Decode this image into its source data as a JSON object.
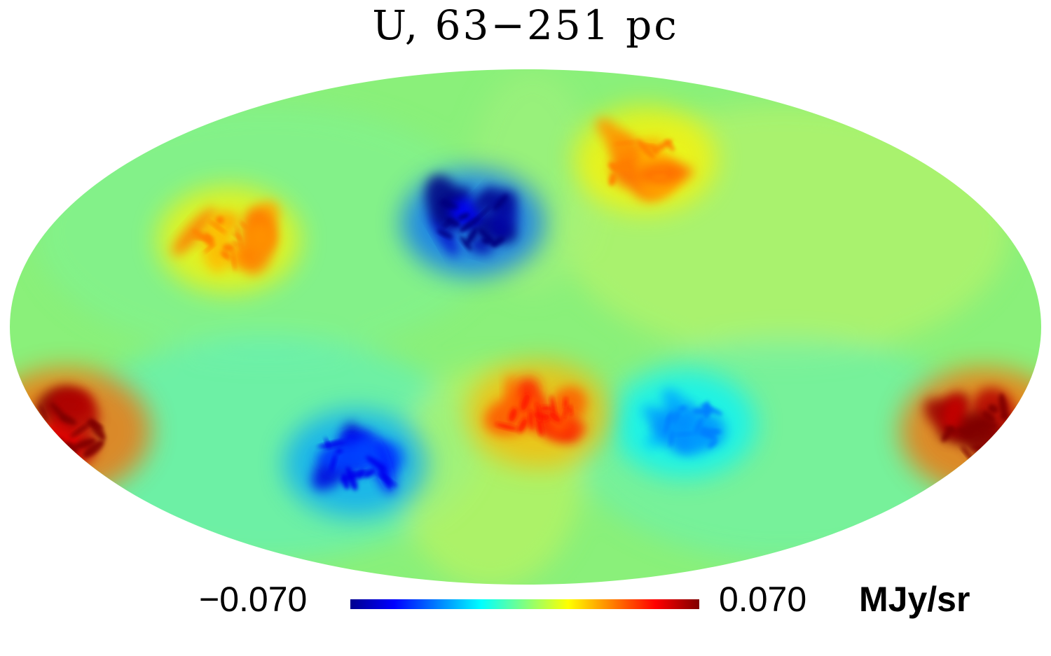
{
  "title": "U, 63−251 pc",
  "chart_data": {
    "type": "heatmap",
    "projection": "mollweide",
    "title": "U, 63−251 pc",
    "colormap": "jet",
    "colorbar": {
      "min": -0.07,
      "max": 0.07,
      "min_label": "−0.070",
      "max_label": "0.070",
      "unit": "MJy/sr"
    },
    "features": [
      {
        "name": "negative cloud, north-central",
        "lon": 20,
        "lat": 30,
        "value": -0.07
      },
      {
        "name": "negative cloud, south-left",
        "lon": 70,
        "lat": -40,
        "value": -0.055
      },
      {
        "name": "negative cloud, south-right",
        "lon": -60,
        "lat": -28,
        "value": -0.035
      },
      {
        "name": "positive cloud, south-central",
        "lon": -5,
        "lat": -25,
        "value": 0.05
      },
      {
        "name": "positive cloud, north-left",
        "lon": 110,
        "lat": 25,
        "value": 0.035
      },
      {
        "name": "positive cloud, north-right",
        "lon": -55,
        "lat": 50,
        "value": 0.035
      },
      {
        "name": "positive limb, lower-left",
        "lon": 175,
        "lat": -30,
        "value": 0.07
      },
      {
        "name": "positive limb, lower-right",
        "lon": -175,
        "lat": -30,
        "value": 0.07
      }
    ]
  }
}
